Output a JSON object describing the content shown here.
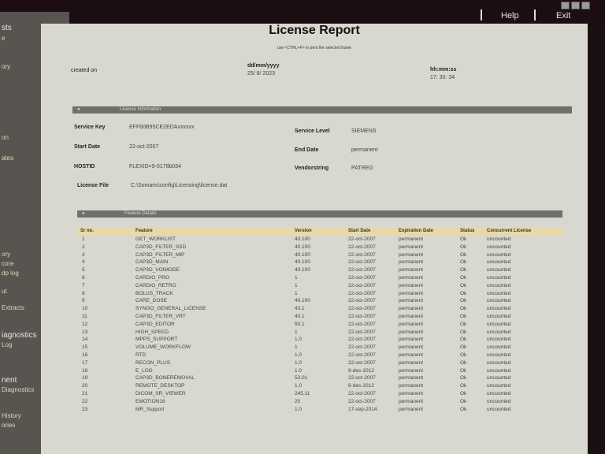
{
  "topbar": {
    "help": "Help",
    "exit": "Exit"
  },
  "sidebar": {
    "items": [
      "sts",
      "e",
      "ory",
      "on",
      "ates",
      "ory",
      "core",
      "dp log",
      "ut",
      "Extracts",
      "iagnostics",
      "Log",
      "nent",
      "Diagnostics",
      "History",
      "ories"
    ]
  },
  "report": {
    "title": "License Report",
    "hint": "use <CTRL+P> to print the selected frame",
    "created_on_label": "created on",
    "date_format": "dd/mm/yyyy",
    "date": "25/ 8/ 2023",
    "time_format": "hh:mm:ss",
    "time": "17: 30: 34",
    "license_section": "License Information",
    "license": {
      "service_key_label": "Service Key",
      "service_key": "EFF60B95CE2EDAxxxxxx",
      "service_level_label": "Service Level",
      "service_level": "SIEMENS",
      "start_date_label": "Start Date",
      "start_date": "22-oct-2007",
      "end_date_label": "End Date",
      "end_date": "permanent",
      "hostid_label": "HOSTID",
      "hostid": "FLEXID=9-0178b034",
      "vendorstring_label": "Vendorstring",
      "vendorstring": "PATREG",
      "license_file_label": "License File",
      "license_file": "C:\\Somaris\\config\\Licensing\\license.dat"
    },
    "feature_section": "Feature Details",
    "columns": [
      "Sr no.",
      "Feature",
      "Version",
      "Start Date",
      "Expiration Date",
      "Status",
      "Concurrent License"
    ],
    "rows": [
      [
        "1",
        "GET_WORKLIST",
        "40.100",
        "22-oct-2007",
        "permanent",
        "Ok",
        "uncounted"
      ],
      [
        "2",
        "CAP3D_FILTER_SSD",
        "40.100",
        "22-oct-2007",
        "permanent",
        "Ok",
        "uncounted"
      ],
      [
        "3",
        "CAP3D_FILTER_MIP",
        "40.100",
        "22-oct-2007",
        "permanent",
        "Ok",
        "uncounted"
      ],
      [
        "4",
        "CAP3D_MAIN",
        "40.100",
        "22-oct-2007",
        "permanent",
        "Ok",
        "uncounted"
      ],
      [
        "5",
        "CAP3D_VOIMODE",
        "40.100",
        "22-oct-2007",
        "permanent",
        "Ok",
        "uncounted"
      ],
      [
        "6",
        "CARDIO_PRO",
        "1",
        "22-oct-2007",
        "permanent",
        "Ok",
        "uncounted"
      ],
      [
        "7",
        "CARDIO_RETRO",
        "1",
        "22-oct-2007",
        "permanent",
        "Ok",
        "uncounted"
      ],
      [
        "8",
        "BOLUS_TRACK",
        "1",
        "22-oct-2007",
        "permanent",
        "Ok",
        "uncounted"
      ],
      [
        "9",
        "CARE_DOSE",
        "40.100",
        "22-oct-2007",
        "permanent",
        "Ok",
        "uncounted"
      ],
      [
        "10",
        "SYNGO_GENERAL_LICENSE",
        "43.1",
        "22-oct-2007",
        "permanent",
        "Ok",
        "uncounted"
      ],
      [
        "11",
        "CAP3D_FILTER_VRT",
        "40.1",
        "22-oct-2007",
        "permanent",
        "Ok",
        "uncounted"
      ],
      [
        "12",
        "CAP3D_EDITOR",
        "50.1",
        "22-oct-2007",
        "permanent",
        "Ok",
        "uncounted"
      ],
      [
        "13",
        "HIGH_SPEED",
        "1",
        "22-oct-2007",
        "permanent",
        "Ok",
        "uncounted"
      ],
      [
        "14",
        "MPPS_SUPPORT",
        "1.0",
        "22-oct-2007",
        "permanent",
        "Ok",
        "uncounted"
      ],
      [
        "15",
        "VOLUME_WORKFLOW",
        "1",
        "22-oct-2007",
        "permanent",
        "Ok",
        "uncounted"
      ],
      [
        "16",
        "RTD",
        "1.0",
        "22-oct-2007",
        "permanent",
        "Ok",
        "uncounted"
      ],
      [
        "17",
        "RECON_PLUS",
        "1.0",
        "22-oct-2007",
        "permanent",
        "Ok",
        "uncounted"
      ],
      [
        "18",
        "E_LOG",
        "1.0",
        "6-dec-2012",
        "permanent",
        "Ok",
        "uncounted"
      ],
      [
        "19",
        "CAP3D_BONEREMOVAL",
        "53.01",
        "22-oct-2007",
        "permanent",
        "Ok",
        "uncounted"
      ],
      [
        "20",
        "REMOTE_DESKTOP",
        "1.0",
        "6-dec-2012",
        "permanent",
        "Ok",
        "uncounted"
      ],
      [
        "21",
        "DICOM_SR_VIEWER",
        "245.11",
        "22-oct-2007",
        "permanent",
        "Ok",
        "uncounted"
      ],
      [
        "22",
        "EMOTION16",
        "20",
        "22-oct-2007",
        "permanent",
        "Ok",
        "uncounted"
      ],
      [
        "23",
        "MR_Support",
        "1.0",
        "17-sep-2014",
        "permanent",
        "Ok",
        "uncounted"
      ]
    ]
  }
}
